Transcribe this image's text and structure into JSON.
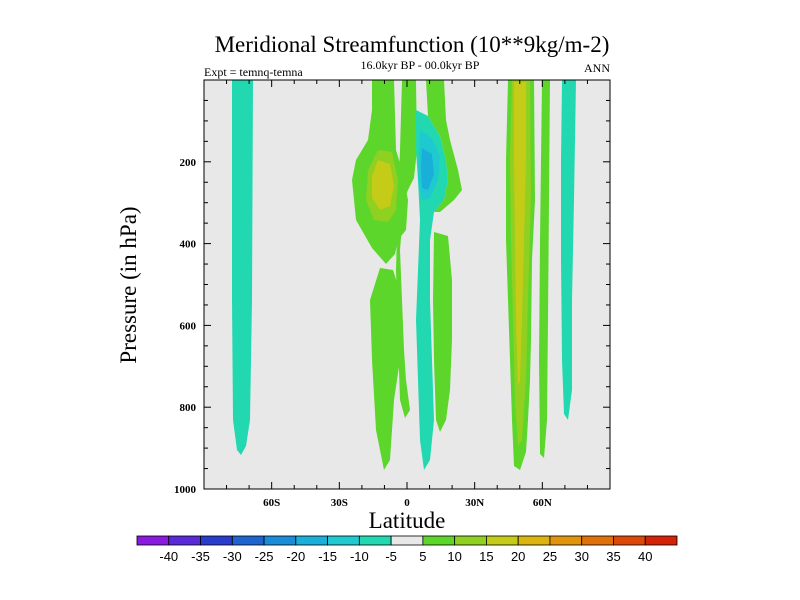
{
  "chart_data": {
    "type": "contour",
    "title": "Meridional Streamfunction (10**9kg/m-2)",
    "subtitle": "16.0kyr BP - 00.0kyr BP",
    "left_label": "Expt = temnq-temna",
    "right_label": "ANN",
    "xlabel": "Latitude",
    "ylabel": "Pressure (in hPa)",
    "xlim": [
      -90,
      90
    ],
    "ylim": [
      0,
      1000
    ],
    "x_ticks": [
      {
        "value": -60,
        "label": "60S"
      },
      {
        "value": -30,
        "label": "30S"
      },
      {
        "value": 0,
        "label": "0"
      },
      {
        "value": 30,
        "label": "30N"
      },
      {
        "value": 60,
        "label": "60N"
      }
    ],
    "y_ticks": [
      {
        "value": 200,
        "label": "200"
      },
      {
        "value": 400,
        "label": "400"
      },
      {
        "value": 600,
        "label": "600"
      },
      {
        "value": 800,
        "label": "800"
      },
      {
        "value": 1000,
        "label": "1000"
      }
    ],
    "contour_levels": [
      -40,
      -35,
      -30,
      -25,
      -20,
      -15,
      -10,
      -5,
      5,
      10,
      15,
      20,
      25,
      30,
      35,
      40
    ],
    "colorbar_colors": [
      "#8a1ae0",
      "#5a2ad8",
      "#2a3ccc",
      "#1f63cf",
      "#1a8cd8",
      "#1aafd9",
      "#1fc9d0",
      "#22d8b0",
      "#e8e8e8",
      "#5cd62a",
      "#8fd020",
      "#c4cc18",
      "#dcb410",
      "#e0940c",
      "#e0700a",
      "#dc4808",
      "#d42206"
    ],
    "background_color": "#e8e8e8",
    "features": [
      {
        "name": "southern-band",
        "latitude_range": [
          -74,
          -67
        ],
        "pressure_range": [
          0,
          910
        ],
        "value": -7
      },
      {
        "name": "tropical-upper-positive-lobe",
        "latitude_range": [
          -18,
          -2
        ],
        "pressure_range": [
          0,
          440
        ],
        "value": 8,
        "core": {
          "latitude": -12,
          "pressure": 230,
          "value": 17
        }
      },
      {
        "name": "tropical-lower-positive-lobe",
        "latitude_range": [
          -18,
          -5
        ],
        "pressure_range": [
          450,
          920
        ],
        "value": 8
      },
      {
        "name": "equatorial-positive-column",
        "latitude_range": [
          -3,
          2
        ],
        "pressure_range": [
          0,
          870
        ],
        "value": 8
      },
      {
        "name": "equatorial-negative-column",
        "latitude_range": [
          3,
          12
        ],
        "pressure_range": [
          0,
          960
        ],
        "value": -7,
        "core": {
          "latitude": 9,
          "pressure": 230,
          "value": -15
        }
      },
      {
        "name": "northern-subtropical-strip",
        "latitude_range": [
          12,
          20
        ],
        "pressure_range": [
          320,
          940
        ],
        "value": 7
      },
      {
        "name": "northern-midlatitude-band",
        "latitude_range": [
          45,
          54
        ],
        "pressure_range": [
          0,
          950
        ],
        "value": 15,
        "core": {
          "latitude": 50,
          "pressure": 400,
          "value": 20
        }
      },
      {
        "name": "high-latitude-strip-a",
        "latitude_range": [
          58,
          62
        ],
        "pressure_range": [
          0,
          950
        ],
        "value": 7
      },
      {
        "name": "high-latitude-strip-b",
        "latitude_range": [
          67,
          73
        ],
        "pressure_range": [
          0,
          830
        ],
        "value": -6
      }
    ]
  }
}
